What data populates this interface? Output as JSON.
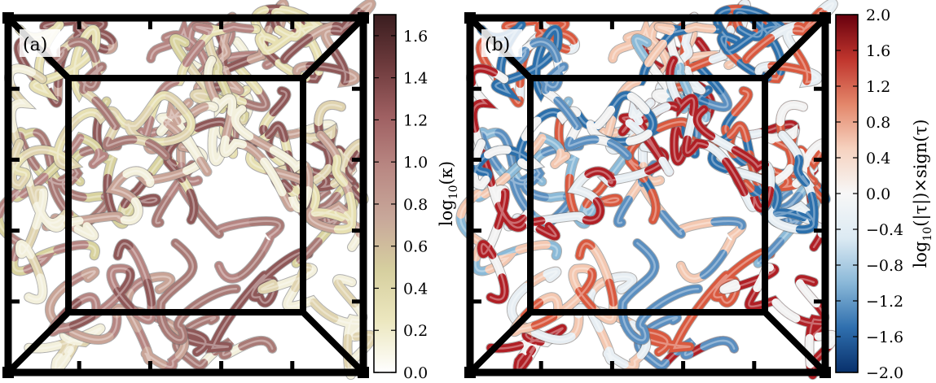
{
  "panels": [
    {
      "id": "a",
      "label": "(a)",
      "colorbar": {
        "label": "log10(κ)",
        "label_main": "log",
        "label_sub": "10",
        "label_rest": "(κ)",
        "ticks": [
          "1.6",
          "1.4",
          "1.2",
          "1.0",
          "0.8",
          "0.6",
          "0.4",
          "0.2",
          "0.0"
        ],
        "range": [
          0.0,
          1.7
        ],
        "colormap": [
          "#ffffff",
          "#ece7bf",
          "#d6cf9f",
          "#c8a89a",
          "#b98883",
          "#9f6062",
          "#6e3b3d",
          "#3a1d1f"
        ]
      },
      "tube_palette": [
        "#e7e0b2",
        "#d9d39f",
        "#c9a497",
        "#b68582",
        "#8f5858",
        "#f3f0dc",
        "#a97a76",
        "#e0d4b0"
      ]
    },
    {
      "id": "b",
      "label": "(b)",
      "colorbar": {
        "label": "log10(|τ|)×sign(τ)",
        "label_main": "log",
        "label_sub": "10",
        "label_rest": "(|τ|)×sign(τ)",
        "ticks": [
          "2.0",
          "1.6",
          "1.2",
          "0.8",
          "0.4",
          "0.0",
          "−0.4",
          "−0.8",
          "−1.2",
          "−1.6",
          "−2.0"
        ],
        "range": [
          -2.0,
          2.0
        ],
        "colormap": [
          "#08306b",
          "#2f6fae",
          "#8ab8d8",
          "#dceaf3",
          "#f7f7f7",
          "#f6d2bf",
          "#e3866a",
          "#c0352d",
          "#67000d"
        ]
      },
      "tube_palette": [
        "#2b6fab",
        "#8bbad8",
        "#e7eef3",
        "#f4c8b1",
        "#d9593f",
        "#b01f25",
        "#5b8fc0",
        "#f2f2f2"
      ]
    }
  ],
  "chart_data": [
    {
      "type": "heatmap",
      "title": "(a)",
      "colorbar_label": "log10(κ)",
      "colorbar_range": [
        0.0,
        1.7
      ],
      "colorbar_ticks": [
        0.0,
        0.2,
        0.4,
        0.6,
        0.8,
        1.0,
        1.2,
        1.4,
        1.6
      ],
      "colormap": "white-yellow-pink-dark-brown"
    },
    {
      "type": "heatmap",
      "title": "(b)",
      "colorbar_label": "log10(|τ|)×sign(τ)",
      "colorbar_range": [
        -2.0,
        2.0
      ],
      "colorbar_ticks": [
        -2.0,
        -1.6,
        -1.2,
        -0.8,
        -0.4,
        0.0,
        0.4,
        0.8,
        1.2,
        1.6,
        2.0
      ],
      "colormap": "RdBu_r"
    }
  ]
}
